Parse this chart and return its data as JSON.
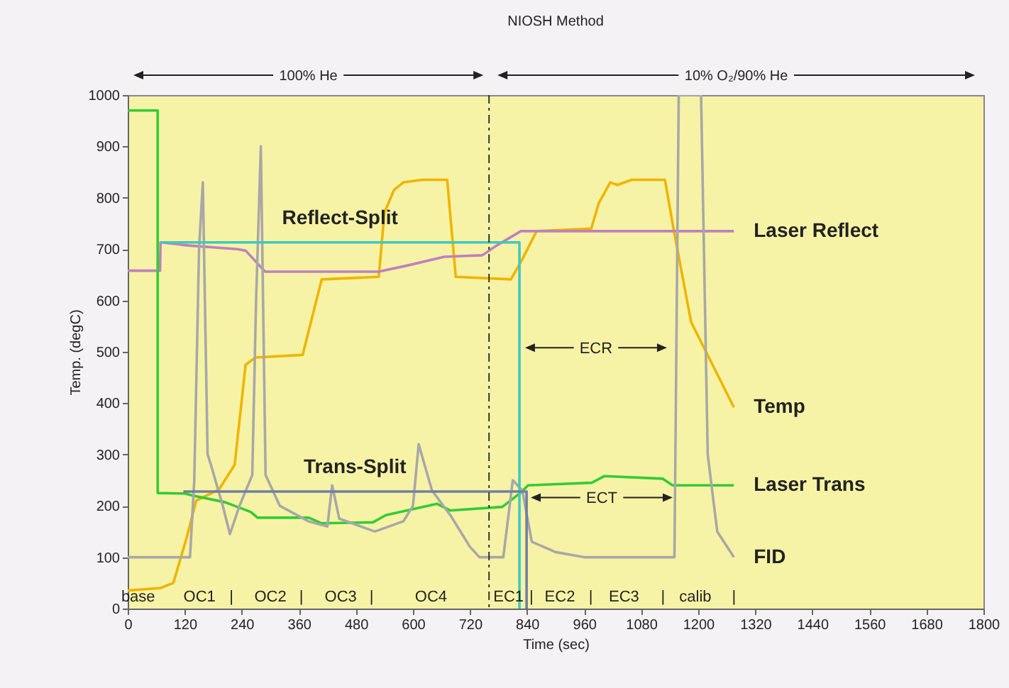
{
  "chart_data": {
    "type": "line",
    "title": "NIOSH Method",
    "xlabel": "Time (sec)",
    "ylabel": "Temp. (degC)",
    "xlim": [
      0,
      1800
    ],
    "xticks": [
      0,
      120,
      240,
      360,
      480,
      600,
      720,
      840,
      960,
      1080,
      1200,
      1320,
      1440,
      1560,
      1680,
      1800
    ],
    "ylim": [
      0,
      1000
    ],
    "yticks": [
      0,
      100,
      200,
      300,
      400,
      500,
      600,
      700,
      800,
      900,
      1000
    ],
    "grid": false,
    "legend": false,
    "series": [
      {
        "name": "Temp",
        "color": "#f0b400",
        "x": [
          0,
          69,
          96,
          124,
          144,
          192,
          225,
          248,
          269,
          368,
          408,
          528,
          540,
          560,
          580,
          620,
          672,
          690,
          806,
          830,
          860,
          975,
          991,
          1015,
          1030,
          1060,
          1130,
          1149,
          1185,
          1275
        ],
        "values": [
          35,
          40,
          50,
          138,
          210,
          232,
          280,
          475,
          489,
          494,
          641,
          646,
          771,
          815,
          830,
          835,
          835,
          646,
          641,
          680,
          735,
          740,
          790,
          830,
          825,
          835,
          835,
          735,
          558,
          392
        ]
      },
      {
        "name": "Laser Reflect",
        "color": "#c080c0",
        "x": [
          0,
          68,
          69,
          128,
          230,
          248,
          289,
          528,
          588,
          666,
          746,
          776,
          827,
          1275
        ],
        "values": [
          658,
          658,
          713,
          707,
          700,
          697,
          656,
          656,
          668,
          685,
          688,
          707,
          735,
          735
        ]
      },
      {
        "name": "Laser Trans",
        "color": "#33cc33",
        "x": [
          0,
          63,
          63,
          120,
          137,
          205,
          259,
          273,
          381,
          408,
          516,
          543,
          651,
          678,
          788,
          827,
          842,
          976,
          1003,
          1125,
          1146,
          1275
        ],
        "values": [
          970,
          970,
          225,
          224,
          220,
          207,
          188,
          177,
          177,
          166,
          168,
          182,
          204,
          191,
          198,
          226,
          240,
          245,
          258,
          253,
          240,
          240
        ]
      },
      {
        "name": "FID",
        "color": "#a8a8a8",
        "x": [
          0,
          131,
          140,
          150,
          158,
          168,
          175,
          200,
          215,
          235,
          262,
          270,
          280,
          290,
          320,
          380,
          420,
          430,
          445,
          520,
          580,
          600,
          612,
          640,
          680,
          720,
          740,
          790,
          810,
          830,
          850,
          900,
          960,
          1150,
          1159,
          1206,
          1220,
          1240,
          1275
        ],
        "values": [
          100,
          100,
          250,
          700,
          830,
          300,
          280,
          200,
          145,
          200,
          260,
          600,
          900,
          260,
          200,
          170,
          160,
          240,
          175,
          150,
          170,
          200,
          320,
          230,
          180,
          120,
          100,
          100,
          250,
          230,
          130,
          110,
          100,
          100,
          1000,
          1000,
          300,
          150,
          100
        ]
      },
      {
        "name": "Reflect-Split",
        "color": "#40c8c0",
        "x": [
          69,
          824,
          824
        ],
        "values": [
          713,
          713,
          0
        ]
      },
      {
        "name": "Trans-Split",
        "color": "#7080a0",
        "x": [
          117,
          839,
          839
        ],
        "values": [
          228,
          228,
          0
        ]
      }
    ],
    "ref_lines": [
      {
        "axis": "x",
        "value": 760,
        "color": "#333333",
        "line_style": "dashdot"
      }
    ],
    "annotations": [
      "100% He",
      "10% O₂/90% He",
      "ECR",
      "ECT",
      "base",
      "OC1",
      "|",
      "OC2",
      "|",
      "OC3",
      "|",
      "OC4",
      "EC1",
      "|",
      "EC2",
      "|",
      "EC3",
      "|",
      "calib",
      "|"
    ]
  }
}
